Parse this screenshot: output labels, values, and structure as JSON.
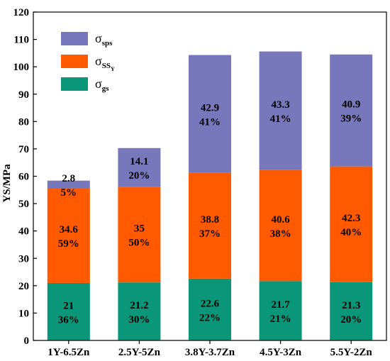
{
  "chart_data": {
    "type": "bar",
    "stacked": true,
    "categories": [
      "1Y-6.5Zn",
      "2.5Y-5Zn",
      "3.8Y-3.7Zn",
      "4.5Y-3Zn",
      "5.5Y-2Zn"
    ],
    "series": [
      {
        "name": "σgs",
        "legend": {
          "symbol": "σ",
          "sub": "gs",
          "subsub": ""
        },
        "color": "#0a9678",
        "values": [
          21,
          21.2,
          22.6,
          21.7,
          21.3
        ],
        "percents": [
          "36%",
          "30%",
          "22%",
          "21%",
          "20%"
        ],
        "labels": [
          "21",
          "21.2",
          "22.6",
          "21.7",
          "21.3"
        ]
      },
      {
        "name": "σSSY",
        "legend": {
          "symbol": "σ",
          "sub": "SS",
          "subsub": "Y"
        },
        "color": "#ff5a00",
        "values": [
          34.6,
          35,
          38.8,
          40.6,
          42.3
        ],
        "percents": [
          "59%",
          "50%",
          "37%",
          "38%",
          "40%"
        ],
        "labels": [
          "34.6",
          "35",
          "38.8",
          "40.6",
          "42.3"
        ]
      },
      {
        "name": "σsps",
        "legend": {
          "symbol": "σ",
          "sub": "sps",
          "subsub": ""
        },
        "color": "#7777bb",
        "values": [
          2.8,
          14.1,
          42.9,
          43.3,
          40.9
        ],
        "percents": [
          "5%",
          "20%",
          "41%",
          "41%",
          "39%"
        ],
        "labels": [
          "2.8",
          "14.1",
          "42.9",
          "43.3",
          "40.9"
        ]
      }
    ],
    "ylabel": "YS/MPa",
    "xlabel": "",
    "ylim": [
      0,
      120
    ],
    "yticks": [
      "0",
      "10",
      "20",
      "30",
      "40",
      "50",
      "60",
      "70",
      "80",
      "90",
      "100",
      "110",
      "120"
    ],
    "grid": false,
    "legend_position": "top-left"
  }
}
